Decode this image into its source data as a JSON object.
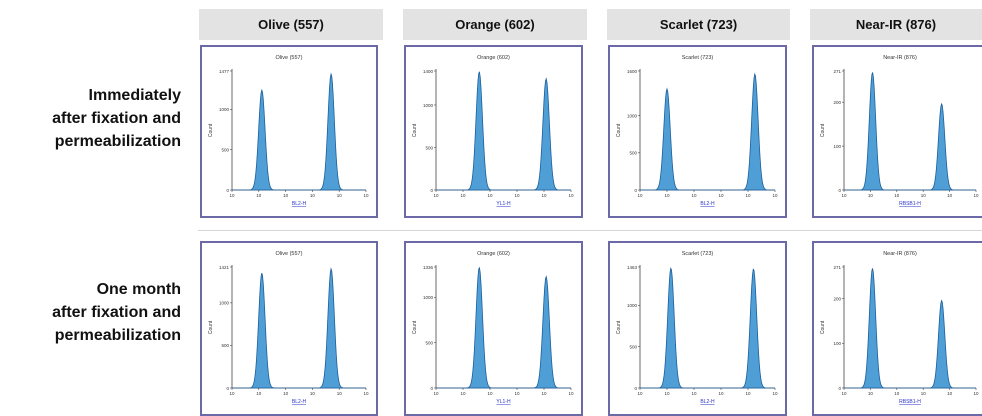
{
  "column_headers": [
    "Olive (557)",
    "Orange (602)",
    "Scarlet (723)",
    "Near-IR (876)"
  ],
  "row_labels": [
    [
      "Immediately",
      "after fixation and",
      "permeabilization"
    ],
    [
      "One month",
      "after fixation and",
      "permeabilization"
    ]
  ],
  "colors": {
    "fill": "#4f9fd6",
    "stroke": "#1c5f9c",
    "frame": "#6b6aa6",
    "header_bg": "#e3e3e3",
    "xlabel": "#2a33c9"
  },
  "chart_data": [
    {
      "type": "area",
      "row": 0,
      "col": 0,
      "title": "Olive (557)",
      "xlabel": "BL2-H",
      "ylabel": "Count",
      "xscale": "log",
      "xticks": [
        "10",
        "10",
        "10",
        "10",
        "10",
        "10"
      ],
      "ylim": [
        0,
        1477
      ],
      "yticks": [
        0,
        500,
        1000,
        1477
      ],
      "peaks": [
        {
          "x": 13,
          "height": 1240
        },
        {
          "x": 5000,
          "height": 1440
        }
      ]
    },
    {
      "type": "area",
      "row": 0,
      "col": 1,
      "title": "Orange (602)",
      "xlabel": "YL1-H",
      "ylabel": "Count",
      "xscale": "log",
      "xticks": [
        "10",
        "10",
        "10",
        "10",
        "10",
        "10"
      ],
      "ylim": [
        0,
        1400
      ],
      "yticks": [
        0,
        500,
        1000,
        1400
      ],
      "peaks": [
        {
          "x": 40,
          "height": 1390
        },
        {
          "x": 12000,
          "height": 1310
        }
      ]
    },
    {
      "type": "area",
      "row": 0,
      "col": 2,
      "title": "Scarlet (723)",
      "xlabel": "BL2-H",
      "ylabel": "Count",
      "xscale": "log",
      "xticks": [
        "10",
        "10",
        "10",
        "10",
        "10",
        "10"
      ],
      "ylim": [
        0,
        1600
      ],
      "yticks": [
        0,
        500,
        1000,
        1600
      ],
      "peaks": [
        {
          "x": 10,
          "height": 1360
        },
        {
          "x": 18000,
          "height": 1560
        }
      ]
    },
    {
      "type": "area",
      "row": 0,
      "col": 3,
      "title": "Near-IR (876)",
      "xlabel": "RBSB1-H",
      "ylabel": "Count",
      "xscale": "log",
      "xticks": [
        "10",
        "10",
        "10",
        "10",
        "10",
        "10"
      ],
      "ylim": [
        0,
        271
      ],
      "yticks": [
        0,
        100,
        200,
        271
      ],
      "peaks": [
        {
          "x": 12,
          "height": 268
        },
        {
          "x": 5000,
          "height": 196
        }
      ]
    },
    {
      "type": "area",
      "row": 1,
      "col": 0,
      "title": "Olive (557)",
      "xlabel": "BL2-H",
      "ylabel": "Count",
      "xscale": "log",
      "xticks": [
        "10",
        "10",
        "10",
        "10",
        "10",
        "10"
      ],
      "ylim": [
        0,
        1421
      ],
      "yticks": [
        0,
        500,
        1000,
        1421
      ],
      "peaks": [
        {
          "x": 13,
          "height": 1350
        },
        {
          "x": 5000,
          "height": 1400
        }
      ]
    },
    {
      "type": "area",
      "row": 1,
      "col": 1,
      "title": "Orange (602)",
      "xlabel": "YL1-H",
      "ylabel": "Count",
      "xscale": "log",
      "xticks": [
        "10",
        "10",
        "10",
        "10",
        "10",
        "10"
      ],
      "ylim": [
        0,
        1336
      ],
      "yticks": [
        0,
        500,
        1000,
        1336
      ],
      "peaks": [
        {
          "x": 40,
          "height": 1330
        },
        {
          "x": 12000,
          "height": 1230
        }
      ]
    },
    {
      "type": "area",
      "row": 1,
      "col": 2,
      "title": "Scarlet (723)",
      "xlabel": "BL2-H",
      "ylabel": "Count",
      "xscale": "log",
      "xticks": [
        "10",
        "10",
        "10",
        "10",
        "10",
        "10"
      ],
      "ylim": [
        0,
        1463
      ],
      "yticks": [
        0,
        500,
        1000,
        1463
      ],
      "peaks": [
        {
          "x": 14,
          "height": 1450
        },
        {
          "x": 16000,
          "height": 1440
        }
      ]
    },
    {
      "type": "area",
      "row": 1,
      "col": 3,
      "title": "Near-IR (876)",
      "xlabel": "RBSB1-H",
      "ylabel": "Count",
      "xscale": "log",
      "xticks": [
        "10",
        "10",
        "10",
        "10",
        "10",
        "10"
      ],
      "ylim": [
        0,
        271
      ],
      "yticks": [
        0,
        100,
        200,
        271
      ],
      "peaks": [
        {
          "x": 12,
          "height": 268
        },
        {
          "x": 5000,
          "height": 196
        }
      ]
    }
  ]
}
